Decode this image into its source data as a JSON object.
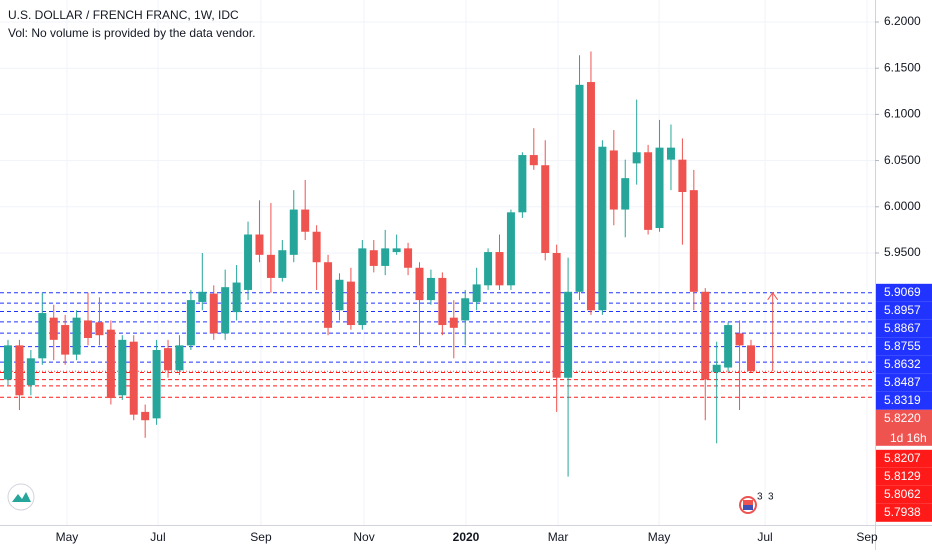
{
  "chart_data": {
    "type": "candlestick",
    "title": "U.S. DOLLAR / FRENCH FRANC, 1W, IDC",
    "subtitle": "Vol: No volume is provided by the data vendor.",
    "up_color": "#26a69a",
    "down_color": "#ef5350",
    "open": [
      5.813,
      5.85,
      5.807,
      5.836,
      5.88,
      5.872,
      5.84,
      5.877,
      5.875,
      5.867,
      5.796,
      5.854,
      5.778,
      5.771,
      5.847,
      5.823,
      5.85,
      5.897,
      5.906,
      5.863,
      5.886,
      5.91,
      5.97,
      5.948,
      5.923,
      5.948,
      5.997,
      5.973,
      5.94,
      5.888,
      5.919,
      5.872,
      5.953,
      5.936,
      5.951,
      5.955,
      5.934,
      5.899,
      5.923,
      5.88,
      5.877,
      5.897,
      5.915,
      5.951,
      5.915,
      5.994,
      6.056,
      6.045,
      5.95,
      5.815,
      5.908,
      6.135,
      5.888,
      6.061,
      5.997,
      6.047,
      6.059,
      5.977,
      6.051,
      6.051,
      6.018,
      5.908,
      5.821,
      5.826,
      5.863,
      5.85
    ],
    "high": [
      5.856,
      5.856,
      5.845,
      5.907,
      5.894,
      5.883,
      5.888,
      5.907,
      5.902,
      5.877,
      5.861,
      5.861,
      5.786,
      5.856,
      5.856,
      5.861,
      5.91,
      5.95,
      5.915,
      5.932,
      5.937,
      5.984,
      6.007,
      6.004,
      5.964,
      6.018,
      6.029,
      5.98,
      5.948,
      5.928,
      5.934,
      5.964,
      5.964,
      5.975,
      5.97,
      5.961,
      5.94,
      5.932,
      5.929,
      5.899,
      5.91,
      5.934,
      5.955,
      5.97,
      5.997,
      6.059,
      6.085,
      6.072,
      5.959,
      5.945,
      6.164,
      6.168,
      6.072,
      6.083,
      6.051,
      6.116,
      6.067,
      6.094,
      6.089,
      6.074,
      6.04,
      5.912,
      5.854,
      5.875,
      5.877,
      5.856
    ],
    "low": [
      5.807,
      5.78,
      5.796,
      5.829,
      5.834,
      5.829,
      5.834,
      5.85,
      5.85,
      5.786,
      5.791,
      5.769,
      5.75,
      5.764,
      5.815,
      5.818,
      5.845,
      5.888,
      5.856,
      5.856,
      5.877,
      5.899,
      5.94,
      5.907,
      5.919,
      5.94,
      5.964,
      5.91,
      5.861,
      5.877,
      5.867,
      5.867,
      5.929,
      5.926,
      5.948,
      5.926,
      5.85,
      5.894,
      5.861,
      5.836,
      5.85,
      5.888,
      5.91,
      5.91,
      5.91,
      5.988,
      6.04,
      5.942,
      5.778,
      5.708,
      5.899,
      5.883,
      5.883,
      5.98,
      5.967,
      6.024,
      5.97,
      5.973,
      6.018,
      5.959,
      5.888,
      5.769,
      5.744,
      5.821,
      5.78,
      5.821
    ],
    "close": [
      5.85,
      5.796,
      5.836,
      5.885,
      5.856,
      5.84,
      5.88,
      5.858,
      5.861,
      5.793,
      5.856,
      5.775,
      5.769,
      5.845,
      5.823,
      5.85,
      5.899,
      5.908,
      5.863,
      5.913,
      5.918,
      5.97,
      5.948,
      5.923,
      5.953,
      5.997,
      5.973,
      5.94,
      5.869,
      5.921,
      5.872,
      5.955,
      5.936,
      5.955,
      5.955,
      5.934,
      5.899,
      5.923,
      5.872,
      5.869,
      5.901,
      5.916,
      5.951,
      5.915,
      5.994,
      6.056,
      6.045,
      5.95,
      5.815,
      5.908,
      6.132,
      5.888,
      6.065,
      5.997,
      6.031,
      6.059,
      5.975,
      6.064,
      6.064,
      6.016,
      5.908,
      5.813,
      5.829,
      5.872,
      5.85,
      5.822
    ],
    "xlim": [
      -0.7,
      75.85
    ],
    "ylim": [
      5.6556,
      6.2238
    ],
    "xticks": [
      {
        "value": 5.16,
        "label": "May"
      },
      {
        "value": 13.12,
        "label": "Jul"
      },
      {
        "value": 22.13,
        "label": "Sep"
      },
      {
        "value": 31.15,
        "label": "Nov"
      },
      {
        "value": 40.07,
        "label": "2020"
      },
      {
        "value": 48.12,
        "label": "Mar"
      },
      {
        "value": 56.96,
        "label": "May"
      },
      {
        "value": 66.23,
        "label": "Jul"
      },
      {
        "value": 75.15,
        "label": "Sep"
      }
    ],
    "yticks": [
      {
        "value": 5.95,
        "label": "5.9500"
      },
      {
        "value": 6.0,
        "label": "6.0000"
      },
      {
        "value": 6.05,
        "label": "6.0500"
      },
      {
        "value": 6.1,
        "label": "6.1000"
      },
      {
        "value": 6.15,
        "label": "6.1500"
      },
      {
        "value": 6.2,
        "label": "6.2000"
      }
    ],
    "grid": true,
    "levels": [
      {
        "value": 5.9069,
        "label": "5.9069",
        "color": "#2133ff"
      },
      {
        "value": 5.8957,
        "label": "5.8957",
        "color": "#2133ff"
      },
      {
        "value": 5.8867,
        "label": "5.8867",
        "color": "#2133ff"
      },
      {
        "value": 5.8755,
        "label": "5.8755",
        "color": "#2133ff"
      },
      {
        "value": 5.8632,
        "label": "5.8632",
        "color": "#2133ff"
      },
      {
        "value": 5.8487,
        "label": "5.8487",
        "color": "#2133ff"
      },
      {
        "value": 5.8319,
        "label": "5.8319",
        "color": "#2133ff"
      },
      {
        "value": 5.8207,
        "label": "5.8207",
        "color": "#ff1a1a"
      },
      {
        "value": 5.8129,
        "label": "5.8129",
        "color": "#ff1a1a"
      },
      {
        "value": 5.8062,
        "label": "5.8062",
        "color": "#ff1a1a"
      },
      {
        "value": 5.7938,
        "label": "5.7938",
        "color": "#ff1a1a"
      }
    ],
    "current_price": {
      "value": 5.822,
      "label": "5.8220",
      "countdown": "1d 16h",
      "color": "#ef5350"
    },
    "arrow": {
      "x": 66.9,
      "from": 5.822,
      "to": 5.9069,
      "color": "#ef5350"
    },
    "events": [
      "3",
      "3"
    ]
  }
}
